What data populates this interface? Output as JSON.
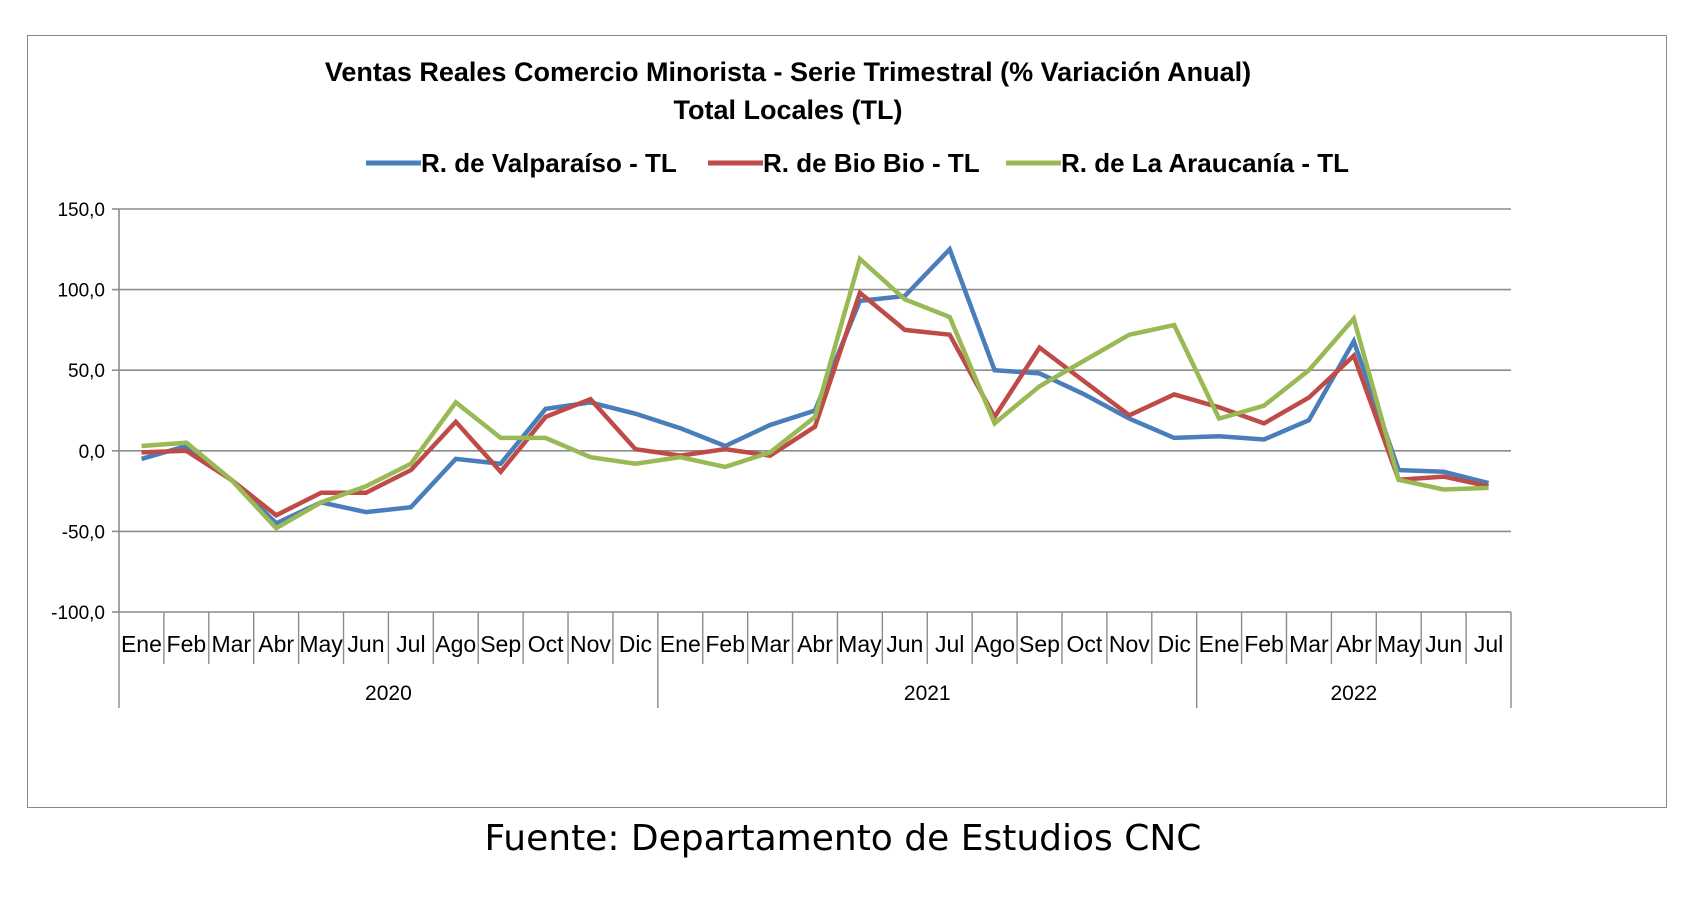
{
  "source": "Fuente: Departamento de Estudios CNC",
  "chart_data": {
    "type": "line",
    "title": "Ventas Reales Comercio Minorista - Serie Trimestral (% Variación Anual)",
    "subtitle": "Total Locales (TL)",
    "legend_position": "top",
    "grid": true,
    "ylim": [
      -100,
      150
    ],
    "yticks": [
      "-100,0",
      "-50,0",
      "0,0",
      "50,0",
      "100,0",
      "150,0"
    ],
    "ytick_values": [
      -100,
      -50,
      0,
      50,
      100,
      150
    ],
    "categories": [
      "Ene",
      "Feb",
      "Mar",
      "Abr",
      "May",
      "Jun",
      "Jul",
      "Ago",
      "Sep",
      "Oct",
      "Nov",
      "Dic",
      "Ene",
      "Feb",
      "Mar",
      "Abr",
      "May",
      "Jun",
      "Jul",
      "Ago",
      "Sep",
      "Oct",
      "Nov",
      "Dic",
      "Ene",
      "Feb",
      "Mar",
      "Abr",
      "May",
      "Jun",
      "Jul"
    ],
    "years": [
      {
        "label": "2020",
        "start": 0,
        "count": 12
      },
      {
        "label": "2021",
        "start": 12,
        "count": 12
      },
      {
        "label": "2022",
        "start": 24,
        "count": 7
      }
    ],
    "series": [
      {
        "name": "R. de Valparaíso - TL",
        "color": "#4a7ebb",
        "values": [
          -5,
          3,
          -18,
          -45,
          -32,
          -38,
          -35,
          -5,
          -8,
          26,
          30,
          23,
          14,
          3,
          16,
          25,
          93,
          96,
          125,
          50,
          48,
          35,
          20,
          8,
          9,
          7,
          19,
          68,
          -12,
          -13,
          -20
        ]
      },
      {
        "name": "R. de Bio Bio - TL",
        "color": "#be4b48",
        "values": [
          -1,
          0,
          -18,
          -40,
          -26,
          -26,
          -12,
          18,
          -13,
          21,
          32,
          1,
          -3,
          1,
          -3,
          15,
          98,
          75,
          72,
          21,
          64,
          43,
          22,
          35,
          27,
          17,
          33,
          59,
          -18,
          -16,
          -22
        ]
      },
      {
        "name": "R. de La Araucanía - TL",
        "color": "#98b954",
        "values": [
          3,
          5,
          -18,
          -48,
          -32,
          -22,
          -8,
          30,
          8,
          8,
          -4,
          -8,
          -4,
          -10,
          -1,
          21,
          119,
          94,
          83,
          17,
          40,
          56,
          72,
          78,
          20,
          28,
          50,
          82,
          -18,
          -24,
          -23
        ]
      }
    ]
  }
}
